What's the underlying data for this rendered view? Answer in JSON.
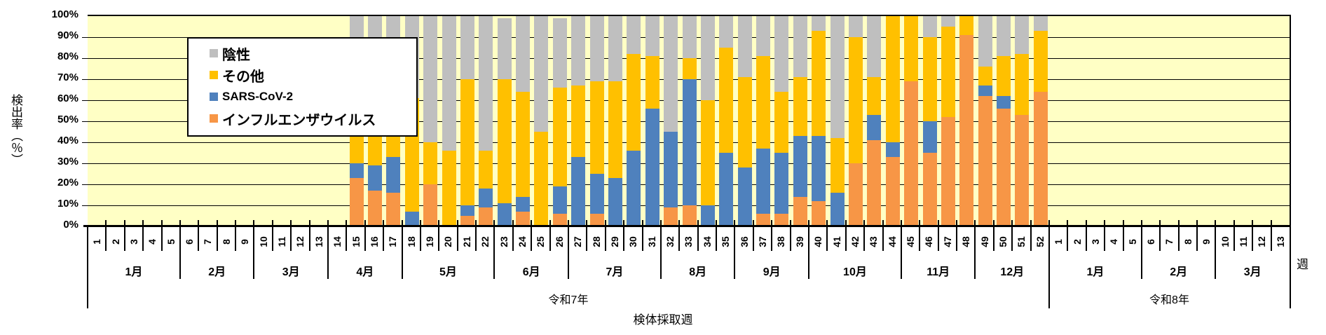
{
  "chart_data": {
    "type": "bar",
    "stacked": true,
    "title": "",
    "ylabel": "検出率（％）",
    "xlabel": "検体採取週",
    "x_unit_label": "週",
    "ylim": [
      0,
      100
    ],
    "yticks": [
      "0%",
      "10%",
      "20%",
      "30%",
      "40%",
      "50%",
      "60%",
      "70%",
      "80%",
      "90%",
      "100%"
    ],
    "grid": true,
    "legend_position": "upper-left-inside",
    "legend": [
      {
        "name": "陰性",
        "color": "#BFBFBF"
      },
      {
        "name": "その他",
        "color": "#FFC000"
      },
      {
        "name": "SARS-CoV-2",
        "color": "#4F81BD"
      },
      {
        "name": "インフルエンザウイルス",
        "color": "#F79646"
      }
    ],
    "categories": [
      "1",
      "2",
      "3",
      "4",
      "5",
      "6",
      "7",
      "8",
      "9",
      "10",
      "11",
      "12",
      "13",
      "14",
      "15",
      "16",
      "17",
      "18",
      "19",
      "20",
      "21",
      "22",
      "23",
      "24",
      "25",
      "26",
      "27",
      "28",
      "29",
      "30",
      "31",
      "32",
      "33",
      "34",
      "35",
      "36",
      "37",
      "38",
      "39",
      "40",
      "41",
      "42",
      "43",
      "44",
      "45",
      "46",
      "47",
      "48",
      "49",
      "50",
      "51",
      "52",
      "1",
      "2",
      "3",
      "4",
      "5",
      "6",
      "7",
      "8",
      "9",
      "10",
      "11",
      "12",
      "13"
    ],
    "months": [
      {
        "label": "1月",
        "start": 0,
        "end": 4
      },
      {
        "label": "2月",
        "start": 5,
        "end": 8
      },
      {
        "label": "3月",
        "start": 9,
        "end": 12
      },
      {
        "label": "4月",
        "start": 13,
        "end": 16
      },
      {
        "label": "5月",
        "start": 17,
        "end": 21
      },
      {
        "label": "6月",
        "start": 22,
        "end": 25
      },
      {
        "label": "7月",
        "start": 26,
        "end": 30
      },
      {
        "label": "8月",
        "start": 31,
        "end": 34
      },
      {
        "label": "9月",
        "start": 35,
        "end": 38
      },
      {
        "label": "10月",
        "start": 39,
        "end": 43
      },
      {
        "label": "11月",
        "start": 44,
        "end": 47
      },
      {
        "label": "12月",
        "start": 48,
        "end": 51
      },
      {
        "label": "1月",
        "start": 52,
        "end": 56
      },
      {
        "label": "2月",
        "start": 57,
        "end": 60
      },
      {
        "label": "3月",
        "start": 61,
        "end": 64
      }
    ],
    "years": [
      {
        "label": "令和7年",
        "start": 0,
        "end": 51
      },
      {
        "label": "令和8年",
        "start": 52,
        "end": 64
      }
    ],
    "series": [
      {
        "name": "インフルエンザウイルス",
        "color": "#F79646",
        "values": [
          null,
          null,
          null,
          null,
          null,
          null,
          null,
          null,
          null,
          null,
          null,
          null,
          null,
          null,
          23,
          17,
          16,
          0,
          20,
          0,
          5,
          9,
          0,
          7,
          0,
          6,
          0,
          6,
          0,
          0,
          0,
          9,
          10,
          0,
          0,
          0,
          6,
          6,
          14,
          12,
          0,
          30,
          41,
          33,
          69,
          35,
          52,
          91,
          62,
          56,
          53,
          64,
          null,
          null,
          null,
          null,
          null,
          null,
          null,
          null,
          null,
          null,
          null,
          null,
          null
        ]
      },
      {
        "name": "SARS-CoV-2",
        "color": "#4F81BD",
        "values": [
          null,
          null,
          null,
          null,
          null,
          null,
          null,
          null,
          null,
          null,
          null,
          null,
          null,
          null,
          7,
          12,
          17,
          7,
          0,
          0,
          5,
          9,
          11,
          7,
          0,
          13,
          33,
          19,
          23,
          36,
          56,
          36,
          60,
          10,
          35,
          28,
          31,
          29,
          29,
          31,
          16,
          0,
          12,
          7,
          0,
          15,
          0,
          0,
          5,
          6,
          0,
          0,
          null,
          null,
          null,
          null,
          null,
          null,
          null,
          null,
          null,
          null,
          null,
          null,
          null
        ]
      },
      {
        "name": "その他",
        "color": "#FFC000",
        "values": [
          null,
          null,
          null,
          null,
          null,
          null,
          null,
          null,
          null,
          null,
          null,
          null,
          null,
          null,
          31,
          24,
          50,
          54,
          20,
          36,
          60,
          18,
          59,
          50,
          45,
          47,
          34,
          44,
          46,
          46,
          25,
          0,
          10,
          50,
          50,
          43,
          44,
          29,
          28,
          50,
          26,
          60,
          18,
          60,
          31,
          40,
          43,
          9,
          9,
          19,
          29,
          29,
          null,
          null,
          null,
          null,
          null,
          null,
          null,
          null,
          null,
          null,
          null,
          null,
          null
        ]
      },
      {
        "name": "陰性",
        "color": "#BFBFBF",
        "values": [
          null,
          null,
          null,
          null,
          null,
          null,
          null,
          null,
          null,
          null,
          null,
          null,
          null,
          null,
          39,
          47,
          17,
          39,
          60,
          64,
          30,
          64,
          29,
          36,
          55,
          33,
          33,
          31,
          31,
          18,
          19,
          55,
          20,
          40,
          15,
          29,
          19,
          36,
          29,
          7,
          58,
          10,
          29,
          0,
          0,
          10,
          5,
          0,
          24,
          19,
          18,
          7,
          null,
          null,
          null,
          null,
          null,
          null,
          null,
          null,
          null,
          null,
          null,
          null,
          null
        ]
      }
    ]
  }
}
